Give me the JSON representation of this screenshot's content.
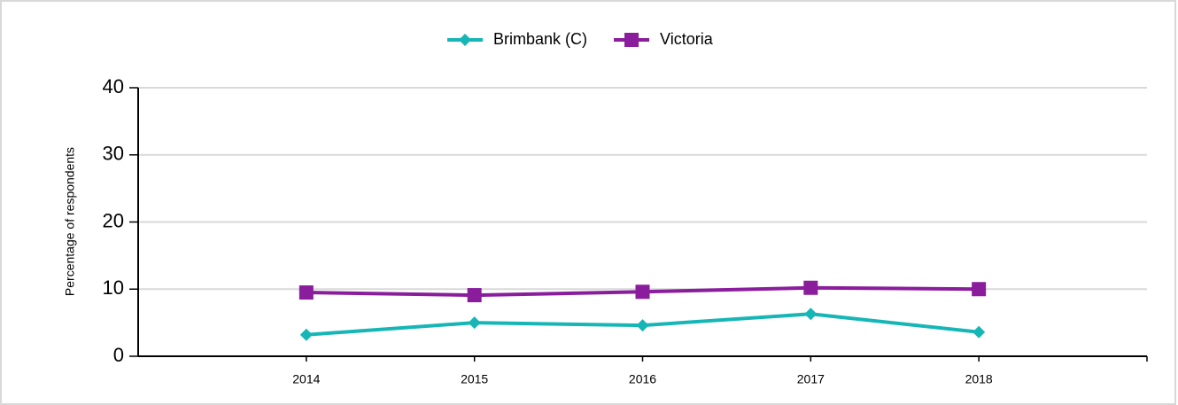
{
  "chart_data": {
    "type": "line",
    "y_label": "Percentage of respondents",
    "categories": [
      "2014",
      "2015",
      "2016",
      "2017",
      "2018"
    ],
    "series": [
      {
        "name": "Brimbank (C)",
        "color": "#17b6b6",
        "marker": "diamond",
        "values": [
          3.2,
          5.0,
          4.6,
          6.3,
          3.6
        ]
      },
      {
        "name": "Victoria",
        "color": "#8a1d9c",
        "marker": "square",
        "values": [
          9.5,
          9.1,
          9.6,
          10.2,
          10.0
        ]
      }
    ],
    "ylim": [
      0,
      40
    ],
    "yticks": [
      0,
      10,
      20,
      30,
      40
    ],
    "grid": true,
    "legend": "top"
  }
}
